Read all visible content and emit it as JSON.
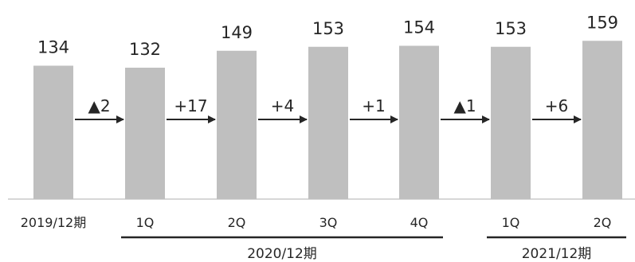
{
  "chart_data": {
    "type": "bar",
    "categories": [
      "2019/12期",
      "1Q",
      "2Q",
      "3Q",
      "4Q",
      "1Q",
      "2Q"
    ],
    "values": [
      134,
      132,
      149,
      153,
      154,
      153,
      159
    ],
    "changes": [
      "▲2",
      "+17",
      "+4",
      "+1",
      "▲1",
      "+6"
    ],
    "groups": [
      {
        "label": "2020/12期",
        "from": 1,
        "to": 4
      },
      {
        "label": "2021/12期",
        "from": 5,
        "to": 6
      }
    ],
    "title": "",
    "xlabel": "",
    "ylabel": "",
    "ylim": [
      0,
      160
    ],
    "grid": false,
    "legend": "none",
    "bar_color": "#bfbfbf",
    "text_color": "#262626",
    "line_color": "#262626"
  }
}
